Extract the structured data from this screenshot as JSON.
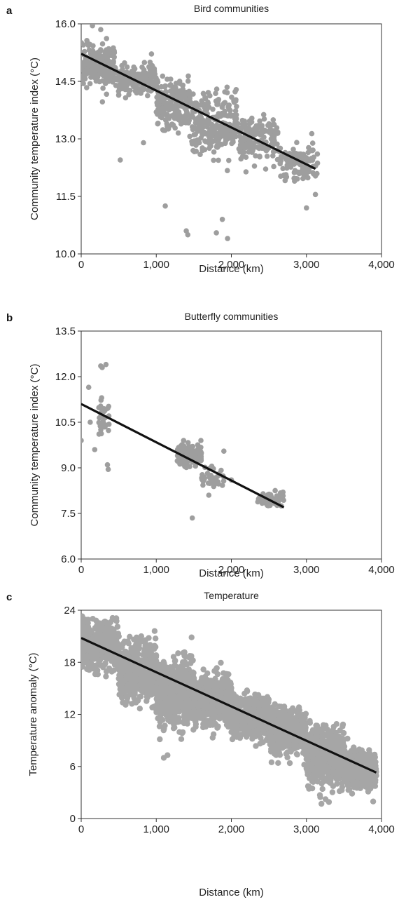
{
  "chart_data": [
    {
      "panel_letter": "a",
      "type": "scatter",
      "title": "Bird communities",
      "xlabel": "Distance (km)",
      "ylabel": "Community temperature index (°C)",
      "xlim": [
        0,
        4000
      ],
      "ylim": [
        10.0,
        16.0
      ],
      "xticks": [
        0,
        1000,
        2000,
        3000,
        4000
      ],
      "xtick_labels": [
        "0",
        "1,000",
        "2,000",
        "3,000",
        "4,000"
      ],
      "yticks": [
        10.0,
        11.5,
        13.0,
        14.5,
        16.0
      ],
      "ytick_labels": [
        "10.0",
        "11.5",
        "13.0",
        "14.5",
        "16.0"
      ],
      "point_color": "#9e9e9e",
      "line_color": "#111111",
      "trend_line": {
        "x": [
          0,
          3120
        ],
        "y": [
          15.22,
          12.22
        ]
      },
      "clusters": [
        {
          "x_range": [
            0,
            450
          ],
          "y_center": 14.9,
          "y_spread": 0.45,
          "count": 220
        },
        {
          "x_range": [
            450,
            1000
          ],
          "y_center": 14.55,
          "y_spread": 0.35,
          "count": 180
        },
        {
          "x_range": [
            1000,
            1450
          ],
          "y_center": 13.9,
          "y_spread": 0.6,
          "count": 200
        },
        {
          "x_range": [
            1450,
            2100
          ],
          "y_center": 13.4,
          "y_spread": 0.75,
          "count": 260
        },
        {
          "x_range": [
            2100,
            2650
          ],
          "y_center": 13.0,
          "y_spread": 0.5,
          "count": 160
        },
        {
          "x_range": [
            2650,
            3150
          ],
          "y_center": 12.4,
          "y_spread": 0.45,
          "count": 110
        }
      ],
      "outliers": [
        [
          520,
          12.45
        ],
        [
          830,
          12.9
        ],
        [
          1120,
          11.25
        ],
        [
          1400,
          10.6
        ],
        [
          1420,
          10.5
        ],
        [
          1800,
          10.55
        ],
        [
          1950,
          10.4
        ],
        [
          1880,
          10.9
        ],
        [
          3000,
          11.2
        ],
        [
          3120,
          11.55
        ],
        [
          150,
          15.95
        ],
        [
          260,
          15.85
        ]
      ]
    },
    {
      "panel_letter": "b",
      "type": "scatter",
      "title": "Butterfly communities",
      "xlabel": "Distance (km)",
      "ylabel": "Community temperature index (°C)",
      "xlim": [
        0,
        4000
      ],
      "ylim": [
        6.0,
        13.5
      ],
      "xticks": [
        0,
        1000,
        2000,
        3000,
        4000
      ],
      "xtick_labels": [
        "0",
        "1,000",
        "2,000",
        "3,000",
        "4,000"
      ],
      "yticks": [
        6.0,
        7.5,
        9.0,
        10.5,
        12.0,
        13.5
      ],
      "ytick_labels": [
        "6.0",
        "7.5",
        "9.0",
        "10.5",
        "12.0",
        "13.5"
      ],
      "point_color": "#9e9e9e",
      "line_color": "#111111",
      "trend_line": {
        "x": [
          0,
          2700
        ],
        "y": [
          11.1,
          7.7
        ]
      },
      "clusters": [
        {
          "x_range": [
            230,
            380
          ],
          "y_center": 10.7,
          "y_spread": 0.55,
          "count": 35
        },
        {
          "x_range": [
            1280,
            1600
          ],
          "y_center": 9.4,
          "y_spread": 0.35,
          "count": 140
        },
        {
          "x_range": [
            1600,
            1900
          ],
          "y_center": 8.7,
          "y_spread": 0.3,
          "count": 40
        },
        {
          "x_range": [
            2350,
            2700
          ],
          "y_center": 8.0,
          "y_spread": 0.2,
          "count": 60
        }
      ],
      "outliers": [
        [
          0,
          9.9
        ],
        [
          100,
          11.65
        ],
        [
          120,
          10.5
        ],
        [
          180,
          9.6
        ],
        [
          260,
          12.35
        ],
        [
          280,
          12.3
        ],
        [
          330,
          12.4
        ],
        [
          350,
          9.1
        ],
        [
          360,
          8.95
        ],
        [
          1480,
          7.35
        ],
        [
          1700,
          8.1
        ],
        [
          1900,
          9.55
        ],
        [
          2000,
          8.6
        ]
      ]
    },
    {
      "panel_letter": "c",
      "type": "scatter",
      "title": "Temperature",
      "xlabel": "Distance (km)",
      "ylabel": "Temperature anomaly (°C)",
      "xlim": [
        0,
        4000
      ],
      "ylim": [
        0,
        24
      ],
      "xticks": [
        0,
        1000,
        2000,
        3000,
        4000
      ],
      "xtick_labels": [
        "0",
        "1,000",
        "2,000",
        "3,000",
        "4,000"
      ],
      "yticks": [
        0,
        6,
        12,
        18,
        24
      ],
      "ytick_labels": [
        "0",
        "6",
        "12",
        "18",
        "24"
      ],
      "point_color": "#a6a6a6",
      "line_color": "#111111",
      "trend_line": {
        "x": [
          0,
          3930
        ],
        "y": [
          20.8,
          5.3
        ]
      },
      "clusters": [
        {
          "x_range": [
            0,
            500
          ],
          "y_center": 20.0,
          "y_spread": 2.3,
          "count": 520
        },
        {
          "x_range": [
            500,
            1000
          ],
          "y_center": 17.0,
          "y_spread": 3.0,
          "count": 560
        },
        {
          "x_range": [
            1000,
            1500
          ],
          "y_center": 14.5,
          "y_spread": 3.4,
          "count": 560
        },
        {
          "x_range": [
            1500,
            2000
          ],
          "y_center": 13.6,
          "y_spread": 2.3,
          "count": 520
        },
        {
          "x_range": [
            2000,
            2500
          ],
          "y_center": 11.8,
          "y_spread": 2.0,
          "count": 500
        },
        {
          "x_range": [
            2500,
            3000
          ],
          "y_center": 10.0,
          "y_spread": 2.4,
          "count": 500
        },
        {
          "x_range": [
            3000,
            3500
          ],
          "y_center": 7.2,
          "y_spread": 2.9,
          "count": 520
        },
        {
          "x_range": [
            3500,
            3930
          ],
          "y_center": 5.6,
          "y_spread": 2.0,
          "count": 440
        }
      ],
      "outliers": [
        [
          1100,
          7.0
        ],
        [
          1150,
          7.3
        ],
        [
          3200,
          1.7
        ],
        [
          3300,
          1.9
        ],
        [
          200,
          22.8
        ],
        [
          300,
          22.6
        ],
        [
          800,
          21.0
        ],
        [
          900,
          20.8
        ]
      ]
    }
  ]
}
